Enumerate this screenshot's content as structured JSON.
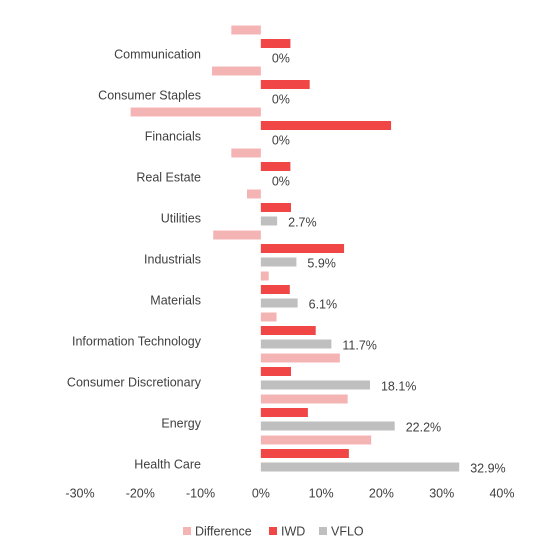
{
  "chart_data": {
    "type": "bar",
    "orientation": "horizontal",
    "categories": [
      "Communication",
      "Consumer Staples",
      "Financials",
      "Real Estate",
      "Utilities",
      "Industrials",
      "Materials",
      "Information Technology",
      "Consumer Discretionary",
      "Energy",
      "Health Care"
    ],
    "series": [
      {
        "name": "Difference",
        "color": "#f4b4b4",
        "values": [
          -4.9,
          -8.1,
          -21.6,
          -4.9,
          -2.3,
          -7.9,
          1.3,
          2.6,
          13.1,
          14.4,
          18.3
        ]
      },
      {
        "name": "IWD",
        "color": "#f04646",
        "values": [
          4.9,
          8.1,
          21.6,
          4.9,
          5.0,
          13.8,
          4.8,
          9.1,
          5.0,
          7.8,
          14.6
        ]
      },
      {
        "name": "VFLO",
        "color": "#bfbfbf",
        "values": [
          0,
          0,
          0,
          0,
          2.7,
          5.9,
          6.1,
          11.7,
          18.1,
          22.2,
          32.9
        ],
        "value_labels": [
          "0%",
          "0%",
          "0%",
          "0%",
          "2.7%",
          "5.9%",
          "6.1%",
          "11.7%",
          "18.1%",
          "22.2%",
          "32.9%"
        ]
      }
    ],
    "xlim": [
      -30,
      40
    ],
    "xticks": [
      {
        "value": -30,
        "label": "-30%"
      },
      {
        "value": -20,
        "label": "-20%"
      },
      {
        "value": -10,
        "label": "-10%"
      },
      {
        "value": 0,
        "label": "0%"
      },
      {
        "value": 10,
        "label": "10%"
      },
      {
        "value": 20,
        "label": "20%"
      },
      {
        "value": 30,
        "label": "30%"
      },
      {
        "value": 40,
        "label": "40%"
      }
    ],
    "grid": false,
    "legend": "bottom"
  }
}
